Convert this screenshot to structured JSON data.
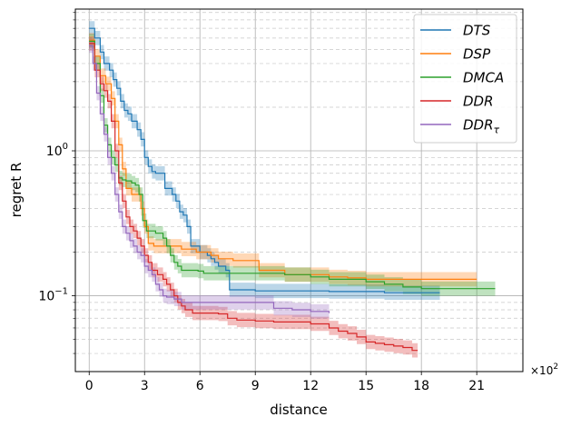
{
  "chart_data": {
    "type": "line",
    "xlabel": "distance",
    "ylabel": "regret R",
    "x_multiplier": "×10",
    "x_multiplier_exp": "2",
    "xlim": [
      -75,
      2350
    ],
    "ylim": [
      0.03,
      9.5
    ],
    "yscale": "log",
    "x_ticks": [
      0,
      300,
      600,
      900,
      1200,
      1500,
      1800,
      2100
    ],
    "x_tick_labels": [
      "0",
      "3",
      "6",
      "9",
      "12",
      "15",
      "18",
      "21"
    ],
    "y_ticks": [
      {
        "value": 0.1,
        "base": "10",
        "exp": "−1"
      },
      {
        "value": 1,
        "base": "10",
        "exp": "0"
      }
    ],
    "grid": true,
    "legend_position": "top-right",
    "colors": {
      "DTS": "#1f77b4",
      "DSP": "#ff7f0e",
      "DMCA": "#2ca02c",
      "DDR": "#d62728",
      "DDR_tau": "#9467bd"
    },
    "series": [
      {
        "name": "DTS",
        "color_key": "DTS",
        "band": 0.12,
        "points": [
          [
            0,
            7.0
          ],
          [
            30,
            6.0
          ],
          [
            60,
            4.8
          ],
          [
            80,
            4.0
          ],
          [
            110,
            3.6
          ],
          [
            130,
            3.1
          ],
          [
            150,
            2.7
          ],
          [
            170,
            2.2
          ],
          [
            190,
            1.9
          ],
          [
            210,
            1.8
          ],
          [
            230,
            1.6
          ],
          [
            260,
            1.4
          ],
          [
            280,
            1.2
          ],
          [
            300,
            0.9
          ],
          [
            320,
            0.78
          ],
          [
            340,
            0.72
          ],
          [
            360,
            0.7
          ],
          [
            390,
            0.7
          ],
          [
            410,
            0.55
          ],
          [
            430,
            0.55
          ],
          [
            450,
            0.5
          ],
          [
            470,
            0.45
          ],
          [
            490,
            0.38
          ],
          [
            510,
            0.36
          ],
          [
            530,
            0.3
          ],
          [
            550,
            0.22
          ],
          [
            580,
            0.22
          ],
          [
            600,
            0.2
          ],
          [
            620,
            0.2
          ],
          [
            640,
            0.19
          ],
          [
            660,
            0.18
          ],
          [
            680,
            0.17
          ],
          [
            700,
            0.16
          ],
          [
            720,
            0.16
          ],
          [
            740,
            0.15
          ],
          [
            760,
            0.11
          ],
          [
            900,
            0.108
          ],
          [
            1300,
            0.107
          ],
          [
            1600,
            0.105
          ],
          [
            1900,
            0.105
          ]
        ]
      },
      {
        "name": "DSP",
        "color_key": "DSP",
        "band": 0.12,
        "points": [
          [
            0,
            5.8
          ],
          [
            30,
            4.5
          ],
          [
            60,
            3.3
          ],
          [
            90,
            2.9
          ],
          [
            120,
            2.3
          ],
          [
            140,
            1.6
          ],
          [
            160,
            1.1
          ],
          [
            180,
            0.75
          ],
          [
            200,
            0.55
          ],
          [
            230,
            0.5
          ],
          [
            260,
            0.5
          ],
          [
            280,
            0.4
          ],
          [
            300,
            0.3
          ],
          [
            320,
            0.23
          ],
          [
            350,
            0.22
          ],
          [
            380,
            0.22
          ],
          [
            420,
            0.22
          ],
          [
            460,
            0.22
          ],
          [
            500,
            0.21
          ],
          [
            540,
            0.21
          ],
          [
            580,
            0.2
          ],
          [
            620,
            0.2
          ],
          [
            660,
            0.19
          ],
          [
            700,
            0.18
          ],
          [
            740,
            0.18
          ],
          [
            780,
            0.175
          ],
          [
            860,
            0.175
          ],
          [
            920,
            0.15
          ],
          [
            1000,
            0.15
          ],
          [
            1060,
            0.14
          ],
          [
            1100,
            0.14
          ],
          [
            1200,
            0.14
          ],
          [
            1300,
            0.135
          ],
          [
            1400,
            0.133
          ],
          [
            1500,
            0.13
          ],
          [
            1600,
            0.13
          ],
          [
            1800,
            0.13
          ],
          [
            2100,
            0.13
          ]
        ]
      },
      {
        "name": "DMCA",
        "color_key": "DMCA",
        "band": 0.12,
        "points": [
          [
            0,
            5.7
          ],
          [
            30,
            4.0
          ],
          [
            60,
            2.4
          ],
          [
            80,
            1.5
          ],
          [
            100,
            1.1
          ],
          [
            120,
            0.9
          ],
          [
            140,
            0.8
          ],
          [
            160,
            0.65
          ],
          [
            180,
            0.63
          ],
          [
            200,
            0.62
          ],
          [
            230,
            0.6
          ],
          [
            250,
            0.58
          ],
          [
            270,
            0.5
          ],
          [
            290,
            0.33
          ],
          [
            310,
            0.28
          ],
          [
            330,
            0.28
          ],
          [
            360,
            0.27
          ],
          [
            400,
            0.25
          ],
          [
            420,
            0.22
          ],
          [
            440,
            0.19
          ],
          [
            460,
            0.17
          ],
          [
            480,
            0.16
          ],
          [
            500,
            0.15
          ],
          [
            530,
            0.15
          ],
          [
            560,
            0.15
          ],
          [
            590,
            0.148
          ],
          [
            620,
            0.143
          ],
          [
            700,
            0.143
          ],
          [
            800,
            0.143
          ],
          [
            900,
            0.143
          ],
          [
            1000,
            0.143
          ],
          [
            1060,
            0.14
          ],
          [
            1100,
            0.14
          ],
          [
            1200,
            0.135
          ],
          [
            1300,
            0.13
          ],
          [
            1400,
            0.13
          ],
          [
            1500,
            0.125
          ],
          [
            1600,
            0.12
          ],
          [
            1700,
            0.115
          ],
          [
            1800,
            0.112
          ],
          [
            1900,
            0.112
          ],
          [
            2000,
            0.112
          ],
          [
            2200,
            0.112
          ]
        ]
      },
      {
        "name": "DDR",
        "color_key": "DDR",
        "band": 0.12,
        "points": [
          [
            0,
            5.5
          ],
          [
            30,
            3.6
          ],
          [
            60,
            2.9
          ],
          [
            80,
            2.6
          ],
          [
            100,
            2.2
          ],
          [
            120,
            1.6
          ],
          [
            140,
            1.0
          ],
          [
            160,
            0.6
          ],
          [
            180,
            0.45
          ],
          [
            200,
            0.35
          ],
          [
            220,
            0.3
          ],
          [
            240,
            0.28
          ],
          [
            260,
            0.25
          ],
          [
            280,
            0.22
          ],
          [
            300,
            0.19
          ],
          [
            320,
            0.17
          ],
          [
            340,
            0.15
          ],
          [
            370,
            0.14
          ],
          [
            400,
            0.13
          ],
          [
            420,
            0.12
          ],
          [
            440,
            0.11
          ],
          [
            460,
            0.1
          ],
          [
            480,
            0.09
          ],
          [
            500,
            0.085
          ],
          [
            520,
            0.08
          ],
          [
            560,
            0.076
          ],
          [
            600,
            0.076
          ],
          [
            700,
            0.075
          ],
          [
            750,
            0.07
          ],
          [
            800,
            0.068
          ],
          [
            900,
            0.067
          ],
          [
            1000,
            0.066
          ],
          [
            1100,
            0.066
          ],
          [
            1200,
            0.064
          ],
          [
            1300,
            0.06
          ],
          [
            1350,
            0.057
          ],
          [
            1400,
            0.055
          ],
          [
            1450,
            0.052
          ],
          [
            1500,
            0.048
          ],
          [
            1550,
            0.047
          ],
          [
            1600,
            0.046
          ],
          [
            1650,
            0.045
          ],
          [
            1700,
            0.044
          ],
          [
            1750,
            0.042
          ],
          [
            1780,
            0.042
          ]
        ]
      },
      {
        "name": "DDR_tau",
        "color_key": "DDR_tau",
        "band": 0.12,
        "points": [
          [
            0,
            5.3
          ],
          [
            20,
            4.0
          ],
          [
            40,
            2.5
          ],
          [
            60,
            1.8
          ],
          [
            80,
            1.3
          ],
          [
            100,
            0.9
          ],
          [
            120,
            0.7
          ],
          [
            140,
            0.5
          ],
          [
            160,
            0.38
          ],
          [
            180,
            0.3
          ],
          [
            200,
            0.27
          ],
          [
            220,
            0.24
          ],
          [
            240,
            0.22
          ],
          [
            260,
            0.2
          ],
          [
            280,
            0.19
          ],
          [
            300,
            0.16
          ],
          [
            320,
            0.15
          ],
          [
            340,
            0.14
          ],
          [
            360,
            0.12
          ],
          [
            380,
            0.11
          ],
          [
            400,
            0.1
          ],
          [
            420,
            0.098
          ],
          [
            460,
            0.095
          ],
          [
            500,
            0.09
          ],
          [
            550,
            0.09
          ],
          [
            600,
            0.09
          ],
          [
            700,
            0.09
          ],
          [
            800,
            0.09
          ],
          [
            900,
            0.09
          ],
          [
            1000,
            0.082
          ],
          [
            1100,
            0.08
          ],
          [
            1200,
            0.078
          ],
          [
            1300,
            0.076
          ]
        ]
      }
    ],
    "legend": [
      {
        "label": "DTS",
        "color_key": "DTS"
      },
      {
        "label": "DSP",
        "color_key": "DSP"
      },
      {
        "label": "DMCA",
        "color_key": "DMCA"
      },
      {
        "label": "DDR",
        "color_key": "DDR"
      },
      {
        "label": "DDR",
        "sub": "τ",
        "color_key": "DDR_tau"
      }
    ]
  }
}
